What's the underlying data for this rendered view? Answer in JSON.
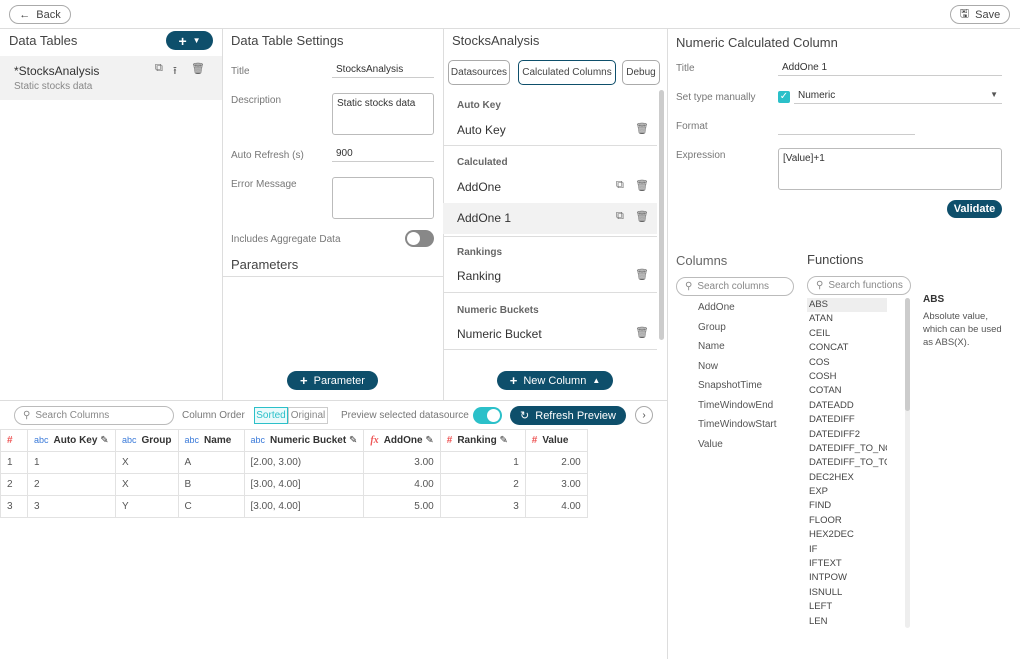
{
  "top": {
    "back": "Back",
    "save": "Save"
  },
  "tables": {
    "title": "Data Tables",
    "item_name": "*StocksAnalysis",
    "item_desc": "Static stocks data"
  },
  "settings": {
    "title": "Data Table Settings",
    "title_label": "Title",
    "title_value": "StocksAnalysis",
    "desc_label": "Description",
    "desc_value": "Static stocks data",
    "refresh_label": "Auto Refresh (s)",
    "refresh_value": "900",
    "error_label": "Error Message",
    "error_value": "",
    "aggregate_label": "Includes Aggregate Data",
    "aggregate_on": false,
    "parameters": "Parameters",
    "add_parameter": "Parameter"
  },
  "calc": {
    "title": "StocksAnalysis",
    "tabs": [
      "Datasources",
      "Calculated Columns",
      "Debug"
    ],
    "active_tab": 1,
    "sections": [
      {
        "name": "Auto Key",
        "items": [
          "Auto Key"
        ]
      },
      {
        "name": "Calculated",
        "items": [
          "AddOne",
          "AddOne 1"
        ]
      },
      {
        "name": "Rankings",
        "items": [
          "Ranking"
        ]
      },
      {
        "name": "Numeric Buckets",
        "items": [
          "Numeric Bucket"
        ]
      }
    ],
    "new_column": "New Column"
  },
  "numeric": {
    "title": "Numeric Calculated Column",
    "title_label": "Title",
    "title_value": "AddOne 1",
    "type_label": "Set type manually",
    "type_checked": true,
    "type_value": "Numeric",
    "format_label": "Format",
    "format_value": "",
    "expr_label": "Expression",
    "expr_value": "[Value]+1",
    "validate": "Validate",
    "columns_title": "Columns",
    "columns_search": "Search columns",
    "columns": [
      "AddOne",
      "Group",
      "Name",
      "Now",
      "SnapshotTime",
      "TimeWindowEnd",
      "TimeWindowStart",
      "Value"
    ],
    "functions_title": "Functions",
    "functions_search": "Search functions",
    "functions": [
      "ABS",
      "ATAN",
      "CEIL",
      "CONCAT",
      "COS",
      "COSH",
      "COTAN",
      "DATEADD",
      "DATEDIFF",
      "DATEDIFF2",
      "DATEDIFF_TO_NOW",
      "DATEDIFF_TO_TODAY",
      "DEC2HEX",
      "EXP",
      "FIND",
      "FLOOR",
      "HEX2DEC",
      "IF",
      "IFTEXT",
      "INTPOW",
      "ISNULL",
      "LEFT",
      "LEN"
    ],
    "selected_function": "ABS",
    "function_help": "Absolute value, which can be used as ABS(X)."
  },
  "preview": {
    "search": "Search Columns",
    "order_label": "Column Order",
    "sorted": "Sorted",
    "original": "Original",
    "preview_label": "Preview selected datasource",
    "preview_on": true,
    "refresh": "Refresh Preview",
    "headers": [
      {
        "type": "#",
        "name": ""
      },
      {
        "type": "abc",
        "name": "Auto Key"
      },
      {
        "type": "abc",
        "name": "Group"
      },
      {
        "type": "abc",
        "name": "Name"
      },
      {
        "type": "abc",
        "name": "Numeric Bucket"
      },
      {
        "type": "fx",
        "name": "AddOne"
      },
      {
        "type": "#",
        "name": "Ranking"
      },
      {
        "type": "#",
        "name": "Value"
      }
    ],
    "rows": [
      [
        "1",
        "1",
        "X",
        "A",
        "[2.00, 3.00)",
        "3.00",
        "1",
        "2.00"
      ],
      [
        "2",
        "2",
        "X",
        "B",
        "[3.00, 4.00]",
        "4.00",
        "2",
        "3.00"
      ],
      [
        "3",
        "3",
        "Y",
        "C",
        "[3.00, 4.00]",
        "5.00",
        "3",
        "4.00"
      ]
    ]
  },
  "colors": {
    "accent": "#0e4f6b",
    "toggle": "#2bc0c9"
  }
}
